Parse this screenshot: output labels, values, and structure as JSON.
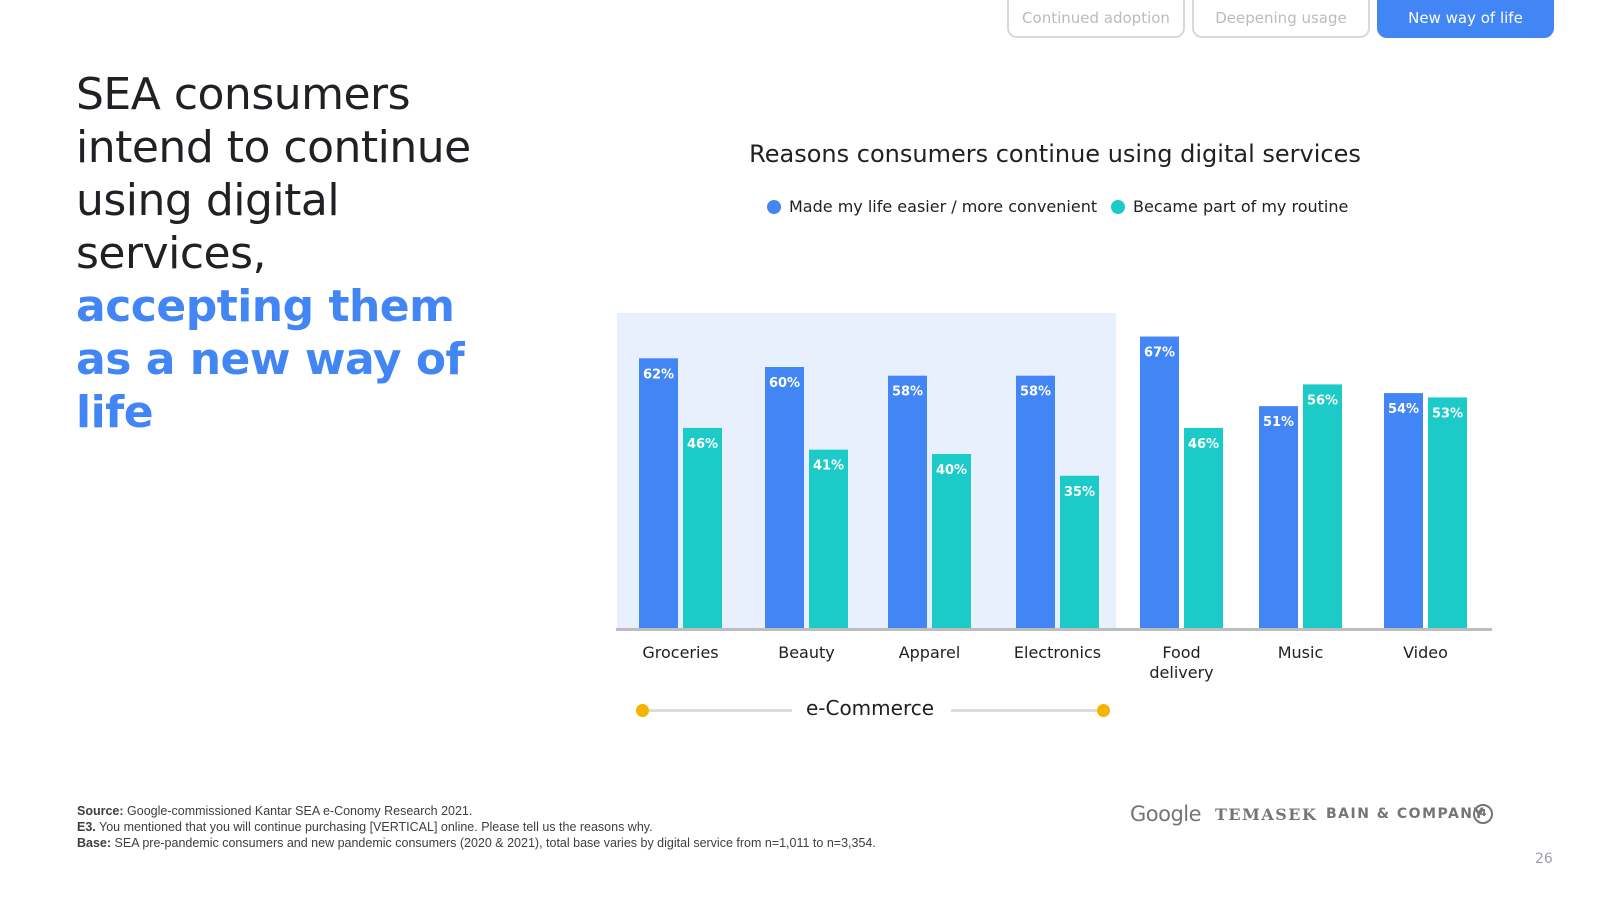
{
  "tabs": [
    {
      "label": "Continued adoption",
      "active": false
    },
    {
      "label": "Deepening usage",
      "active": false
    },
    {
      "label": "New way of life",
      "active": true
    }
  ],
  "headline": {
    "plain": "SEA consumers intend to continue using digital services, ",
    "accent": "accepting them as a new way of life"
  },
  "colors": {
    "series_1": "#4285f4",
    "series_2": "#1ccbc8",
    "ecommerce_highlight": "#e8f0fe",
    "range_dot": "#f4b400"
  },
  "chart_data": {
    "type": "bar",
    "title": "Reasons consumers continue using digital services",
    "categories": [
      "Groceries",
      "Beauty",
      "Apparel",
      "Electronics",
      "Food delivery",
      "Music",
      "Video"
    ],
    "series": [
      {
        "name": "Made my life easier / more convenient",
        "values": [
          62,
          60,
          58,
          58,
          67,
          51,
          54
        ],
        "labels": [
          "62%",
          "60%",
          "58%",
          "58%",
          "67%",
          "51%",
          "54%"
        ]
      },
      {
        "name": "Became part of my routine",
        "values": [
          46,
          41,
          40,
          35,
          46,
          56,
          53
        ],
        "labels": [
          "46%",
          "41%",
          "40%",
          "35%",
          "46%",
          "56%",
          "53%"
        ]
      }
    ],
    "legend_position": "top",
    "group_label": "e-Commerce",
    "group_categories": [
      "Groceries",
      "Beauty",
      "Apparel",
      "Electronics"
    ],
    "grid": false,
    "ylim": [
      0,
      80
    ]
  },
  "footer": {
    "source_label": "Source:",
    "source_text": "Google-commissioned Kantar SEA e-Conomy Research 2021.",
    "question_label": "E3.",
    "question_text": "You mentioned that you will continue purchasing [VERTICAL] online. Please tell us the reasons why.",
    "base_label": "Base:",
    "base_text": "SEA pre-pandemic consumers and new pandemic consumers (2020 & 2021), total base varies by digital service from n=1,011 to n=3,354."
  },
  "logos": {
    "google": "Google",
    "temasek": "TEMASEK",
    "bain": "BAIN & COMPANY",
    "bain_mark": "4"
  },
  "page_number": "26"
}
